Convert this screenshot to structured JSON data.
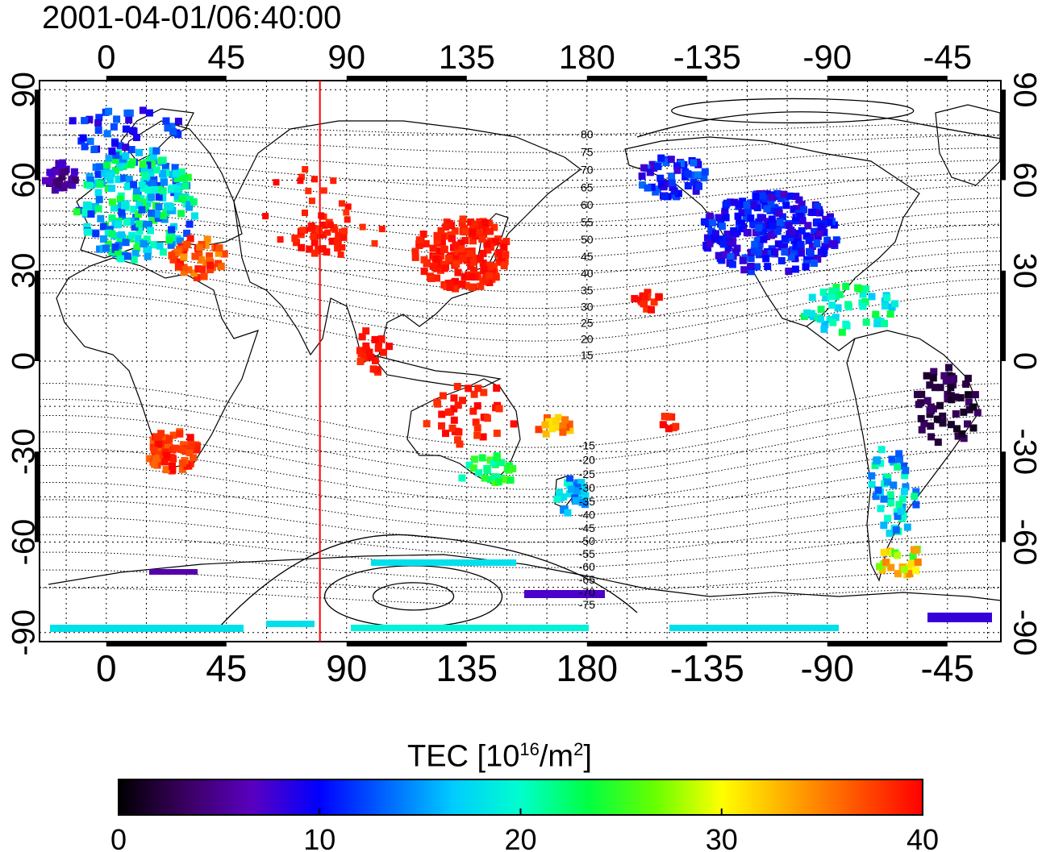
{
  "title": "2001-04-01/06:40:00",
  "colorbar": {
    "label_prefix": "TEC  [10",
    "label_exp1": "16",
    "label_mid": "/m",
    "label_exp2": "2",
    "label_suffix": "]",
    "ticks": [
      "0",
      "10",
      "20",
      "30",
      "40"
    ],
    "range": [
      0,
      40
    ],
    "colors": [
      "#000000",
      "#3a0060",
      "#5a00c0",
      "#0000ff",
      "#0066ff",
      "#00ccff",
      "#00ffcc",
      "#00ff44",
      "#66ff00",
      "#ffff00",
      "#ffaa00",
      "#ff5500",
      "#ff0000"
    ]
  },
  "map": {
    "top_ticks": [
      "0",
      "45",
      "90",
      "135",
      "180",
      "-135",
      "-90",
      "-45"
    ],
    "bottom_ticks": [
      "0",
      "45",
      "90",
      "135",
      "180",
      "-135",
      "-90",
      "-45"
    ],
    "left_ticks": [
      "90",
      "60",
      "30",
      "0",
      "-30",
      "-60",
      "-90"
    ],
    "right_ticks": [
      "90",
      "60",
      "30",
      "0",
      "-30",
      "-60",
      "-90"
    ],
    "contour_labels": [
      "80",
      "75",
      "70",
      "65",
      "60",
      "55",
      "50",
      "45",
      "40",
      "35",
      "30",
      "25",
      "20",
      "15",
      "-15",
      "-20",
      "-25",
      "-30",
      "-35",
      "-40",
      "-45",
      "-50",
      "-55",
      "-60",
      "-65",
      "-70",
      "-75"
    ],
    "meridian_marker_lon": 80,
    "meridian_marker_color": "#ff0000",
    "lon_range": [
      -25,
      335
    ],
    "lat_range": [
      -93,
      93
    ]
  }
}
